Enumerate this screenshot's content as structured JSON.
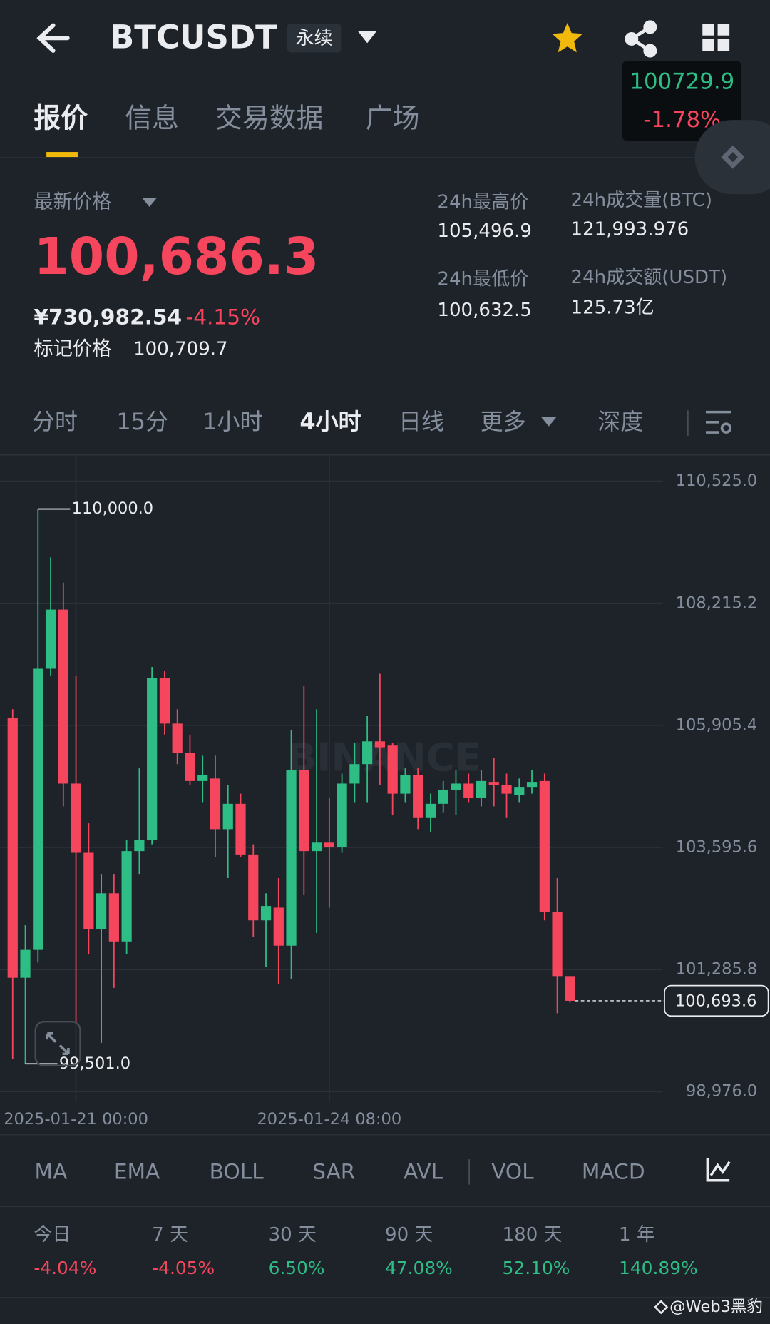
{
  "header": {
    "symbol": "BTCUSDT",
    "contract": "永续",
    "mini_price": "100729.9",
    "mini_change": "-1.78%"
  },
  "tabs": [
    "报价",
    "信息",
    "交易数据",
    "广场"
  ],
  "price": {
    "label": "最新价格",
    "last": "100,686.3",
    "cny": "¥730,982.54",
    "change": "-4.15%",
    "mark_label": "标记价格",
    "mark": "100,709.7"
  },
  "stats": [
    {
      "label": "24h最高价",
      "value": "105,496.9"
    },
    {
      "label": "24h成交量(BTC)",
      "value": "121,993.976"
    },
    {
      "label": "24h最低价",
      "value": "100,632.5"
    },
    {
      "label": "24h成交额(USDT)",
      "value": "125.73亿"
    }
  ],
  "timeframes": [
    "分时",
    "15分",
    "1小时",
    "4小时",
    "日线",
    "更多",
    "深度"
  ],
  "chart_data": {
    "type": "candlestick",
    "watermark": "BINANCE",
    "x": [
      "2025-01-20 04:00",
      "2025-01-20 08:00",
      "2025-01-20 12:00",
      "2025-01-20 16:00",
      "2025-01-20 20:00",
      "2025-01-21 00:00",
      "2025-01-21 04:00",
      "2025-01-21 08:00",
      "2025-01-21 12:00",
      "2025-01-21 16:00",
      "2025-01-21 20:00",
      "2025-01-22 00:00",
      "2025-01-22 04:00",
      "2025-01-22 08:00",
      "2025-01-22 12:00",
      "2025-01-22 16:00",
      "2025-01-22 20:00",
      "2025-01-23 00:00",
      "2025-01-23 04:00",
      "2025-01-23 08:00",
      "2025-01-23 12:00",
      "2025-01-23 16:00",
      "2025-01-23 20:00",
      "2025-01-24 00:00",
      "2025-01-24 04:00",
      "2025-01-24 08:00",
      "2025-01-24 12:00",
      "2025-01-24 16:00",
      "2025-01-24 20:00",
      "2025-01-25 00:00",
      "2025-01-25 04:00",
      "2025-01-25 08:00",
      "2025-01-25 12:00",
      "2025-01-25 16:00",
      "2025-01-25 20:00",
      "2025-01-26 00:00",
      "2025-01-26 04:00",
      "2025-01-26 08:00",
      "2025-01-26 12:00",
      "2025-01-26 16:00",
      "2025-01-26 20:00",
      "2025-01-27 00:00",
      "2025-01-27 04:00",
      "2025-01-27 08:00",
      "2025-01-27 12:00"
    ],
    "open": [
      106051,
      101129,
      101656,
      106977,
      108096,
      104804,
      103494,
      102056,
      102727,
      101816,
      103526,
      103734,
      106802,
      105939,
      105380,
      104852,
      104900,
      103941,
      104421,
      103462,
      102215,
      102455,
      101736,
      105060,
      103526,
      103686,
      103606,
      104804,
      105172,
      105603,
      105523,
      104613,
      104964,
      104165,
      104421,
      104676,
      104804,
      104533,
      104836,
      104772,
      104581,
      104741,
      104852,
      102375,
      101161
    ],
    "high": [
      106211,
      102136,
      110000,
      109087,
      108607,
      106850,
      104053,
      103094,
      103094,
      103734,
      105092,
      107010,
      106929,
      106211,
      105731,
      105332,
      105332,
      104772,
      104613,
      103654,
      102727,
      103015,
      105811,
      106658,
      106211,
      104533,
      104992,
      105571,
      106083,
      106882,
      105571,
      105092,
      105092,
      104613,
      104852,
      105060,
      104992,
      105060,
      105284,
      104992,
      104900,
      105060,
      104992,
      103015,
      101161
    ],
    "low": [
      99600,
      99501,
      101416,
      106850,
      104373,
      100298,
      101576,
      99898,
      100937,
      101576,
      103094,
      103654,
      105731,
      105172,
      104772,
      104453,
      103414,
      103015,
      103414,
      101896,
      101336,
      101017,
      101097,
      102694,
      101976,
      102455,
      103494,
      104453,
      104453,
      104772,
      104213,
      104453,
      103941,
      103893,
      104261,
      104213,
      104453,
      104373,
      104373,
      104165,
      104453,
      104613,
      102215,
      100458,
      100660
    ],
    "close": [
      101129,
      101656,
      106977,
      108096,
      104804,
      103494,
      102056,
      102727,
      101816,
      103526,
      103734,
      106802,
      105939,
      105380,
      104852,
      104964,
      103941,
      104421,
      103462,
      102215,
      102487,
      101736,
      105060,
      103526,
      103686,
      103606,
      104804,
      105172,
      105603,
      105491,
      104613,
      104964,
      104165,
      104421,
      104676,
      104804,
      104533,
      104852,
      104772,
      104613,
      104741,
      104836,
      102375,
      101161,
      100693.6
    ],
    "up_color": "#2ebd85",
    "down_color": "#f6465d",
    "ylim": [
      98780,
      111004
    ],
    "yticks": [
      {
        "value": 110525.0,
        "label": "110,525.0"
      },
      {
        "value": 108215.2,
        "label": "108,215.2"
      },
      {
        "value": 105905.4,
        "label": "105,905.4"
      },
      {
        "value": 103595.6,
        "label": "103,595.6"
      },
      {
        "value": 101285.8,
        "label": "101,285.8"
      },
      {
        "value": 98976.0,
        "label": "98,976.0"
      }
    ],
    "xticks": [
      "2025-01-21 00:00",
      "2025-01-24 08:00"
    ],
    "annotations": [
      {
        "value": 110000,
        "label": "110,000.0"
      },
      {
        "value": 99501,
        "label": "99,501.0"
      }
    ],
    "last_price": {
      "value": 100693.6,
      "label": "100,693.6"
    },
    "grid": true
  },
  "indicators": [
    "MA",
    "EMA",
    "BOLL",
    "SAR",
    "AVL",
    "VOL",
    "MACD"
  ],
  "performance": [
    {
      "label": "今日",
      "value": "-4.04%"
    },
    {
      "label": "7 天",
      "value": "-4.05%"
    },
    {
      "label": "30 天",
      "value": "6.50%"
    },
    {
      "label": "90 天",
      "value": "47.08%"
    },
    {
      "label": "180 天",
      "value": "52.10%"
    },
    {
      "label": "1 年",
      "value": "140.89%"
    }
  ],
  "footer": "@Web3黑豹"
}
